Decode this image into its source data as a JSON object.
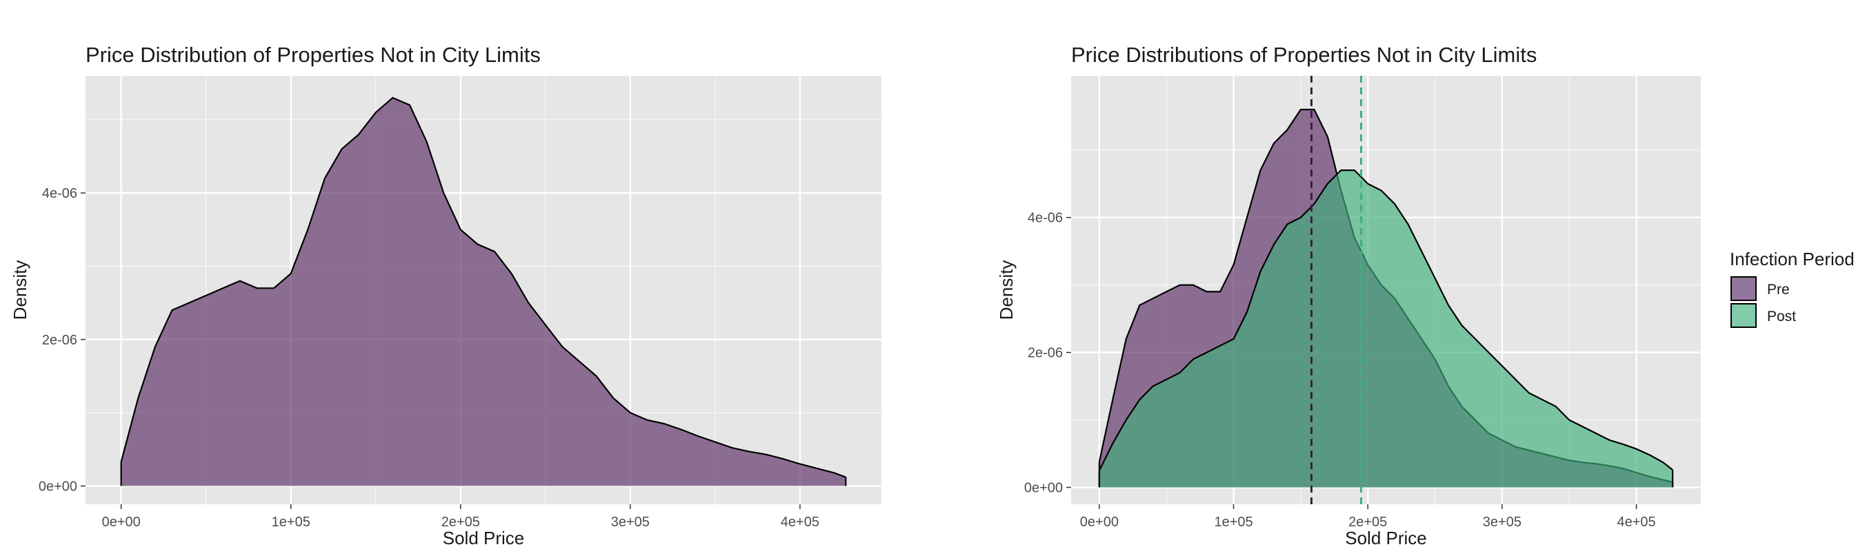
{
  "colors": {
    "pre": "#5b2d66",
    "post": "#3fb07c",
    "panel": "#e6e6e6",
    "grid": "#ffffff"
  },
  "legend": {
    "title": "Infection Period",
    "items": [
      {
        "label": "Pre",
        "color": "#5b2d66"
      },
      {
        "label": "Post",
        "color": "#3fb07c"
      }
    ]
  },
  "chart_data": [
    {
      "type": "area",
      "title": "Price Distribution of Properties Not in City Limits",
      "xlabel": "Sold Price",
      "ylabel": "Density",
      "xlim": [
        -21000,
        448000
      ],
      "ylim": [
        -2.5e-07,
        5.6e-06
      ],
      "xticks": [
        0,
        100000,
        200000,
        300000,
        400000
      ],
      "xtick_labels": [
        "0e+00",
        "1e+05",
        "2e+05",
        "3e+05",
        "4e+05"
      ],
      "yticks": [
        0,
        2e-06,
        4e-06
      ],
      "ytick_labels": [
        "0e+00",
        "2e-06",
        "4e-06"
      ],
      "grid": true,
      "series": [
        {
          "x": [
            0,
            10000,
            20000,
            30000,
            40000,
            50000,
            60000,
            70000,
            80000,
            90000,
            100000,
            110000,
            120000,
            130000,
            140000,
            150000,
            160000,
            170000,
            180000,
            190000,
            200000,
            210000,
            220000,
            230000,
            240000,
            250000,
            260000,
            270000,
            280000,
            290000,
            300000,
            310000,
            320000,
            330000,
            340000,
            350000,
            360000,
            370000,
            380000,
            390000,
            400000,
            410000,
            420000,
            427000
          ],
          "y": [
            3.3e-07,
            1.2e-06,
            1.9e-06,
            2.4e-06,
            2.5e-06,
            2.6e-06,
            2.7e-06,
            2.8e-06,
            2.7e-06,
            2.7e-06,
            2.9e-06,
            3.5e-06,
            4.2e-06,
            4.6e-06,
            4.8e-06,
            5.1e-06,
            5.3e-06,
            5.2e-06,
            4.7e-06,
            4e-06,
            3.5e-06,
            3.3e-06,
            3.2e-06,
            2.9e-06,
            2.5e-06,
            2.2e-06,
            1.9e-06,
            1.7e-06,
            1.5e-06,
            1.2e-06,
            1e-06,
            9e-07,
            8.5e-07,
            7.7e-07,
            6.8e-07,
            6e-07,
            5.2e-07,
            4.7e-07,
            4.3e-07,
            3.7e-07,
            3e-07,
            2.4e-07,
            1.8e-07,
            1.2e-07
          ]
        }
      ]
    },
    {
      "type": "area",
      "title": "Price Distributions of Properties Not in City Limits",
      "xlabel": "Sold Price",
      "ylabel": "Density",
      "xlim": [
        -21000,
        448000
      ],
      "ylim": [
        -2.5e-07,
        6.1e-06
      ],
      "xticks": [
        0,
        100000,
        200000,
        300000,
        400000
      ],
      "xtick_labels": [
        "0e+00",
        "1e+05",
        "2e+05",
        "3e+05",
        "4e+05"
      ],
      "yticks": [
        0,
        2e-06,
        4e-06
      ],
      "ytick_labels": [
        "0e+00",
        "2e-06",
        "4e-06"
      ],
      "grid": true,
      "legend_position": "right",
      "vlines": [
        {
          "series": "Pre",
          "x": 158000
        },
        {
          "series": "Post",
          "x": 195000
        }
      ],
      "series": [
        {
          "name": "Pre",
          "x": [
            0,
            10000,
            20000,
            30000,
            40000,
            50000,
            60000,
            70000,
            80000,
            90000,
            100000,
            110000,
            120000,
            130000,
            140000,
            150000,
            160000,
            170000,
            180000,
            190000,
            200000,
            210000,
            220000,
            230000,
            240000,
            250000,
            260000,
            270000,
            280000,
            290000,
            300000,
            310000,
            320000,
            330000,
            340000,
            350000,
            360000,
            370000,
            380000,
            390000,
            400000,
            410000,
            420000,
            427000
          ],
          "y": [
            3.8e-07,
            1.3e-06,
            2.2e-06,
            2.7e-06,
            2.8e-06,
            2.9e-06,
            3e-06,
            3e-06,
            2.9e-06,
            2.9e-06,
            3.3e-06,
            4e-06,
            4.7e-06,
            5.1e-06,
            5.3e-06,
            5.6e-06,
            5.6e-06,
            5.2e-06,
            4.4e-06,
            3.7e-06,
            3.3e-06,
            3e-06,
            2.8e-06,
            2.5e-06,
            2.2e-06,
            1.9e-06,
            1.5e-06,
            1.2e-06,
            1e-06,
            8e-07,
            7e-07,
            6e-07,
            5.5e-07,
            5e-07,
            4.5e-07,
            4e-07,
            3.7e-07,
            3.5e-07,
            3.2e-07,
            2.8e-07,
            2.2e-07,
            1.6e-07,
            1.1e-07,
            8e-08
          ]
        },
        {
          "name": "Post",
          "x": [
            0,
            10000,
            20000,
            30000,
            40000,
            50000,
            60000,
            70000,
            80000,
            90000,
            100000,
            110000,
            120000,
            130000,
            140000,
            150000,
            160000,
            170000,
            180000,
            190000,
            200000,
            210000,
            220000,
            230000,
            240000,
            250000,
            260000,
            270000,
            280000,
            290000,
            300000,
            310000,
            320000,
            330000,
            340000,
            350000,
            360000,
            370000,
            380000,
            390000,
            400000,
            410000,
            420000,
            427000
          ],
          "y": [
            2.5e-07,
            6.5e-07,
            1e-06,
            1.3e-06,
            1.5e-06,
            1.6e-06,
            1.7e-06,
            1.9e-06,
            2e-06,
            2.1e-06,
            2.2e-06,
            2.6e-06,
            3.2e-06,
            3.6e-06,
            3.9e-06,
            4e-06,
            4.2e-06,
            4.5e-06,
            4.7e-06,
            4.7e-06,
            4.5e-06,
            4.4e-06,
            4.2e-06,
            3.9e-06,
            3.5e-06,
            3.1e-06,
            2.7e-06,
            2.4e-06,
            2.2e-06,
            2e-06,
            1.8e-06,
            1.6e-06,
            1.4e-06,
            1.3e-06,
            1.2e-06,
            1e-06,
            9e-07,
            8e-07,
            7e-07,
            6.4e-07,
            5.7e-07,
            4.8e-07,
            3.7e-07,
            2.6e-07
          ]
        }
      ]
    }
  ]
}
